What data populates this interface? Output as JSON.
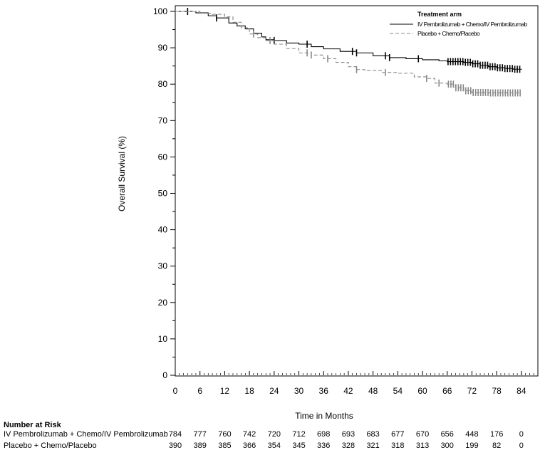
{
  "chart_data": {
    "type": "line",
    "title": "",
    "xlabel": "Time in Months",
    "ylabel": "Overall Survival (%)",
    "xlim": [
      0,
      88
    ],
    "ylim": [
      0,
      100
    ],
    "x_ticks": [
      0,
      6,
      12,
      18,
      24,
      30,
      36,
      42,
      48,
      54,
      60,
      66,
      72,
      78,
      84
    ],
    "y_ticks": [
      0,
      10,
      20,
      30,
      40,
      50,
      60,
      70,
      80,
      90,
      100
    ],
    "legend_title": "Treatment arm",
    "legend_position": "top-right",
    "series": [
      {
        "name": "IV Pembrolizumab + Chemo/IV Pembrolizumab",
        "style": "solid",
        "color": "#000000",
        "points": [
          [
            0,
            100
          ],
          [
            3,
            100
          ],
          [
            5,
            99.6
          ],
          [
            8,
            98.8
          ],
          [
            10,
            98.2
          ],
          [
            13,
            96.8
          ],
          [
            15,
            96.0
          ],
          [
            17,
            95.2
          ],
          [
            19,
            94.0
          ],
          [
            21,
            93.0
          ],
          [
            22,
            92.2
          ],
          [
            24,
            92.0
          ],
          [
            27,
            91.3
          ],
          [
            30,
            91.0
          ],
          [
            33,
            90.3
          ],
          [
            36,
            89.7
          ],
          [
            40,
            89.0
          ],
          [
            44,
            88.6
          ],
          [
            48,
            87.8
          ],
          [
            52,
            87.3
          ],
          [
            56,
            87.0
          ],
          [
            60,
            86.7
          ],
          [
            64,
            86.4
          ],
          [
            66,
            86.2
          ],
          [
            70,
            86.0
          ],
          [
            72,
            85.6
          ],
          [
            74,
            85.2
          ],
          [
            76,
            84.8
          ],
          [
            78,
            84.5
          ],
          [
            80,
            84.3
          ],
          [
            82,
            84.1
          ],
          [
            84,
            84.0
          ]
        ],
        "censor_x": [
          3,
          10,
          24,
          32,
          43,
          44,
          51,
          52,
          59,
          66.2,
          66.8,
          67.4,
          68,
          68.6,
          69.2,
          69.8,
          70.4,
          71,
          71.6,
          72.2,
          72.8,
          73.4,
          74,
          74.6,
          75.2,
          75.8,
          76.4,
          77,
          77.6,
          78.2,
          78.8,
          79.4,
          80,
          80.6,
          81.2,
          81.8,
          82.4,
          83,
          83.6
        ]
      },
      {
        "name": "Placebo + Chemo/Placebo",
        "style": "dashed",
        "color": "#888888",
        "points": [
          [
            0,
            100
          ],
          [
            3,
            100
          ],
          [
            6,
            99.5
          ],
          [
            9,
            99.2
          ],
          [
            12,
            98.5
          ],
          [
            14,
            97.0
          ],
          [
            16,
            95.5
          ],
          [
            18,
            93.8
          ],
          [
            20,
            92.8
          ],
          [
            22,
            92.0
          ],
          [
            24,
            91.0
          ],
          [
            27,
            89.8
          ],
          [
            30,
            88.6
          ],
          [
            33,
            88.0
          ],
          [
            36,
            87.0
          ],
          [
            39,
            86.0
          ],
          [
            42,
            84.8
          ],
          [
            44,
            84.0
          ],
          [
            46,
            83.8
          ],
          [
            50,
            83.2
          ],
          [
            54,
            83.0
          ],
          [
            58,
            82.0
          ],
          [
            61,
            81.6
          ],
          [
            63,
            80.3
          ],
          [
            66,
            80.0
          ],
          [
            68,
            79.0
          ],
          [
            70,
            78.2
          ],
          [
            72,
            77.7
          ],
          [
            76,
            77.6
          ],
          [
            80,
            77.6
          ],
          [
            84,
            77.6
          ]
        ],
        "censor_x": [
          19,
          23,
          32,
          33,
          37,
          44,
          51,
          61,
          64,
          66.3,
          66.9,
          67.5,
          68.1,
          68.7,
          69.3,
          69.9,
          70.5,
          71.1,
          71.7,
          72.3,
          72.9,
          73.5,
          74.1,
          74.7,
          75.3,
          75.9,
          76.5,
          77.1,
          77.7,
          78.3,
          78.9,
          79.5,
          80.1,
          80.7,
          81.3,
          81.9,
          82.5,
          83.1,
          83.7
        ]
      }
    ]
  },
  "risk_table": {
    "title": "Number at Risk",
    "times": [
      0,
      6,
      12,
      18,
      24,
      30,
      36,
      42,
      48,
      54,
      60,
      66,
      72,
      78,
      84
    ],
    "rows": [
      {
        "label": "IV Pembrolizumab + Chemo/IV Pembrolizumab",
        "values": [
          "784",
          "777",
          "760",
          "742",
          "720",
          "712",
          "698",
          "693",
          "683",
          "677",
          "670",
          "656",
          "448",
          "176",
          "0"
        ]
      },
      {
        "label": "Placebo + Chemo/Placebo",
        "values": [
          "390",
          "389",
          "385",
          "366",
          "354",
          "345",
          "336",
          "328",
          "321",
          "318",
          "313",
          "300",
          "199",
          "82",
          "0"
        ]
      }
    ]
  }
}
